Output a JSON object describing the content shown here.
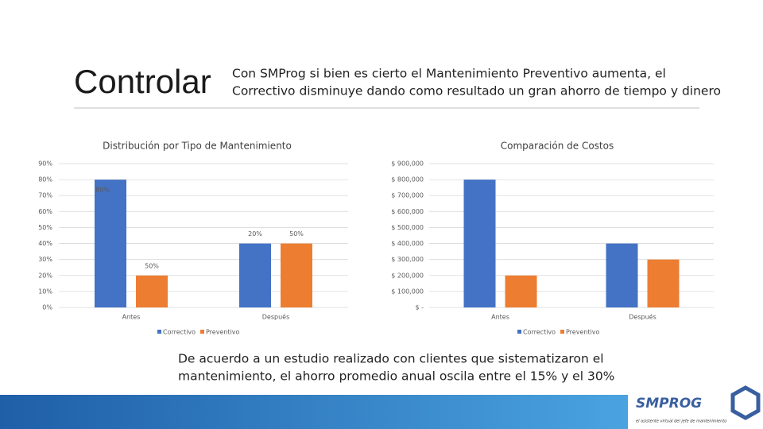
{
  "title": "Controlar",
  "subtitle": [
    "Con SMProg si bien es cierto el Mantenimiento Preventivo aumenta, el",
    "Correctivo disminuye dando como resultado un gran ahorro de tiempo y dinero"
  ],
  "chart_data": [
    {
      "type": "bar",
      "title": "Distribución por Tipo de Mantenimiento",
      "categories": [
        "Antes",
        "Después"
      ],
      "series": [
        {
          "name": "Correctivo",
          "color": "#4472c4",
          "values": [
            80,
            40
          ]
        },
        {
          "name": "Preventivo",
          "color": "#ed7d31",
          "values": [
            20,
            40
          ]
        }
      ],
      "annotations": [
        "80%",
        "20%",
        "50%",
        "50%"
      ],
      "ylim": [
        0,
        90
      ],
      "yticks": [
        {
          "value": 0,
          "label": "0%"
        },
        {
          "value": 10,
          "label": "10%"
        },
        {
          "value": 20,
          "label": "20%"
        },
        {
          "value": 30,
          "label": "30%"
        },
        {
          "value": 40,
          "label": "40%"
        },
        {
          "value": 50,
          "label": "50%"
        },
        {
          "value": 60,
          "label": "60%"
        },
        {
          "value": 70,
          "label": "70%"
        },
        {
          "value": 80,
          "label": "80%"
        },
        {
          "value": 90,
          "label": "90%"
        }
      ],
      "grid": true,
      "legend": "bottom"
    },
    {
      "type": "bar",
      "title": "Comparación de Costos",
      "categories": [
        "Antes",
        "Después"
      ],
      "series": [
        {
          "name": "Correctivo",
          "color": "#4472c4",
          "values": [
            800000,
            400000
          ]
        },
        {
          "name": "Preventivo",
          "color": "#ed7d31",
          "values": [
            200000,
            300000
          ]
        }
      ],
      "ylim": [
        0,
        900000
      ],
      "yticks": [
        {
          "value": 0,
          "label": "$ -"
        },
        {
          "value": 100000,
          "label": "$ 100,000"
        },
        {
          "value": 200000,
          "label": "$ 200,000"
        },
        {
          "value": 300000,
          "label": "$ 300,000"
        },
        {
          "value": 400000,
          "label": "$ 400,000"
        },
        {
          "value": 500000,
          "label": "$ 500,000"
        },
        {
          "value": 600000,
          "label": "$ 600,000"
        },
        {
          "value": 700000,
          "label": "$ 700,000"
        },
        {
          "value": 800000,
          "label": "$ 800,000"
        },
        {
          "value": 900000,
          "label": "$ 900,000"
        }
      ],
      "grid": true,
      "legend": "bottom"
    }
  ],
  "footer": [
    "De acuerdo a un estudio realizado con clientes que sistematizaron el",
    "mantenimiento, el ahorro promedio anual oscila entre el 15% y el 30%"
  ],
  "logo": {
    "name": "SMPROG",
    "tagline": "el asistente virtual del jefe de mantenimiento"
  }
}
